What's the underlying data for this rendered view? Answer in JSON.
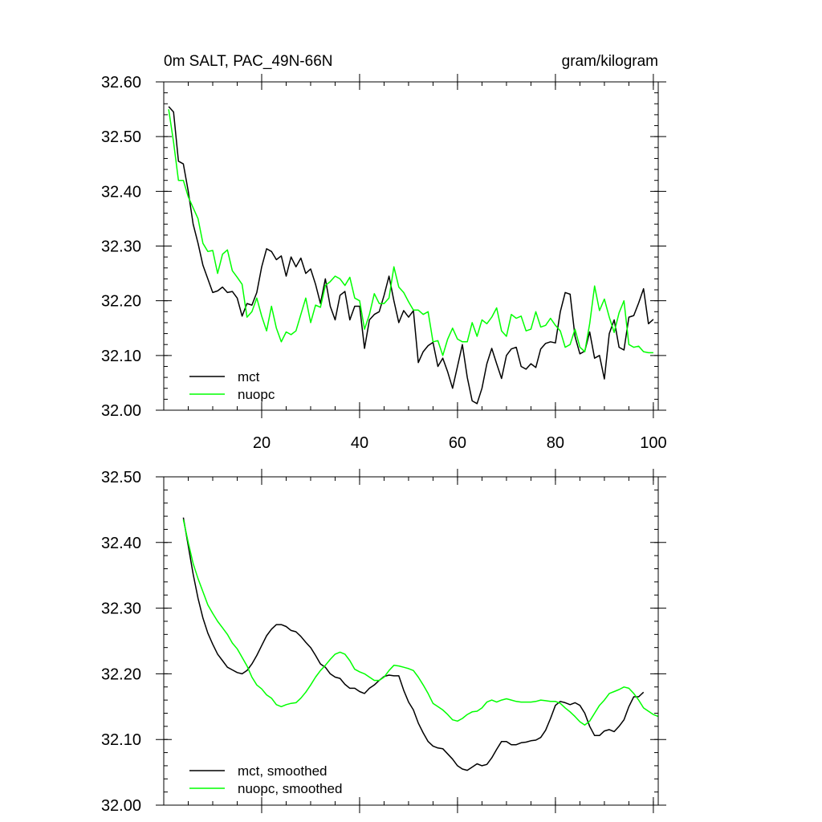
{
  "chart_data": [
    {
      "type": "line",
      "title": "0m SALT, PAC_49N-66N",
      "units": "gram/kilogram",
      "xlabel": "",
      "ylabel": "",
      "xlim": [
        0,
        101
      ],
      "ylim": [
        32.0,
        32.6
      ],
      "xticks": [
        20,
        40,
        60,
        80,
        100
      ],
      "xtick_labels": [
        "20",
        "40",
        "60",
        "80",
        "100"
      ],
      "yticks": [
        32.0,
        32.1,
        32.2,
        32.3,
        32.4,
        32.5,
        32.6
      ],
      "ytick_labels": [
        "32.00",
        "32.10",
        "32.20",
        "32.30",
        "32.40",
        "32.50",
        "32.60"
      ],
      "legend_position": "bottom-left",
      "series": [
        {
          "name": "mct",
          "color": "#000000",
          "values": [
            32.555,
            32.545,
            32.455,
            32.45,
            32.4,
            32.34,
            32.305,
            32.265,
            32.24,
            32.215,
            32.218,
            32.225,
            32.215,
            32.217,
            32.205,
            32.172,
            32.195,
            32.192,
            32.215,
            32.262,
            32.295,
            32.29,
            32.275,
            32.282,
            32.245,
            32.28,
            32.262,
            32.278,
            32.25,
            32.258,
            32.23,
            32.195,
            32.24,
            32.19,
            32.165,
            32.21,
            32.217,
            32.165,
            32.19,
            32.19,
            32.113,
            32.165,
            32.175,
            32.18,
            32.21,
            32.245,
            32.2,
            32.16,
            32.182,
            32.17,
            32.182,
            32.087,
            32.107,
            32.118,
            32.124,
            32.08,
            32.095,
            32.07,
            32.04,
            32.08,
            32.12,
            32.06,
            32.017,
            32.012,
            32.04,
            32.085,
            32.113,
            32.085,
            32.058,
            32.1,
            32.112,
            32.115,
            32.08,
            32.075,
            32.085,
            32.078,
            32.112,
            32.122,
            32.125,
            32.123,
            32.18,
            32.215,
            32.212,
            32.135,
            32.103,
            32.108,
            32.143,
            32.095,
            32.1,
            32.057,
            32.14,
            32.165,
            32.115,
            32.11,
            32.17,
            32.173,
            32.196,
            32.222,
            32.158,
            32.166
          ]
        },
        {
          "name": "nuopc",
          "color": "#00ff00",
          "values": [
            32.55,
            32.49,
            32.42,
            32.42,
            32.39,
            32.37,
            32.35,
            32.305,
            32.29,
            32.292,
            32.25,
            32.285,
            32.293,
            32.255,
            32.243,
            32.23,
            32.17,
            32.18,
            32.205,
            32.172,
            32.145,
            32.19,
            32.15,
            32.125,
            32.143,
            32.138,
            32.145,
            32.175,
            32.205,
            32.16,
            32.192,
            32.188,
            32.228,
            32.235,
            32.245,
            32.24,
            32.228,
            32.243,
            32.205,
            32.2,
            32.148,
            32.175,
            32.213,
            32.195,
            32.195,
            32.205,
            32.262,
            32.225,
            32.215,
            32.198,
            32.183,
            32.183,
            32.175,
            32.18,
            32.125,
            32.127,
            32.1,
            32.13,
            32.15,
            32.13,
            32.125,
            32.125,
            32.16,
            32.135,
            32.165,
            32.158,
            32.17,
            32.187,
            32.145,
            32.135,
            32.175,
            32.168,
            32.172,
            32.145,
            32.148,
            32.18,
            32.152,
            32.155,
            32.168,
            32.155,
            32.145,
            32.115,
            32.12,
            32.148,
            32.115,
            32.107,
            32.158,
            32.227,
            32.182,
            32.203,
            32.17,
            32.142,
            32.178,
            32.2,
            32.12,
            32.115,
            32.117,
            32.107,
            32.105,
            32.105
          ]
        }
      ]
    },
    {
      "type": "line",
      "title": "",
      "xlabel": "",
      "ylabel": "",
      "xlim": [
        0,
        101
      ],
      "ylim": [
        32.0,
        32.5
      ],
      "xticks": [
        20,
        40,
        60,
        80,
        100
      ],
      "xtick_labels": [],
      "yticks": [
        32.0,
        32.1,
        32.2,
        32.3,
        32.4,
        32.5
      ],
      "ytick_labels": [
        "32.00",
        "32.10",
        "32.20",
        "32.30",
        "32.40",
        "32.50"
      ],
      "legend_position": "bottom-left",
      "series": [
        {
          "name": "mct, smoothed",
          "color": "#000000",
          "x_start": 4,
          "values": [
            32.438,
            32.395,
            32.352,
            32.315,
            32.285,
            32.262,
            32.245,
            32.23,
            32.22,
            32.21,
            32.206,
            32.202,
            32.2,
            32.205,
            32.215,
            32.228,
            32.243,
            32.258,
            32.268,
            32.275,
            32.275,
            32.272,
            32.266,
            32.264,
            32.257,
            32.248,
            32.24,
            32.228,
            32.215,
            32.21,
            32.2,
            32.195,
            32.193,
            32.184,
            32.178,
            32.178,
            32.173,
            32.17,
            32.178,
            32.183,
            32.19,
            32.196,
            32.198,
            32.197,
            32.197,
            32.175,
            32.157,
            32.145,
            32.125,
            32.11,
            32.097,
            32.09,
            32.087,
            32.086,
            32.078,
            32.07,
            32.06,
            32.055,
            32.053,
            32.058,
            32.063,
            32.06,
            32.062,
            32.072,
            32.085,
            32.097,
            32.097,
            32.092,
            32.092,
            32.095,
            32.096,
            32.098,
            32.099,
            32.103,
            32.114,
            32.132,
            32.152,
            32.158,
            32.156,
            32.153,
            32.156,
            32.152,
            32.14,
            32.12,
            32.106,
            32.106,
            32.113,
            32.115,
            32.112,
            32.12,
            32.13,
            32.15,
            32.165,
            32.165,
            32.172
          ]
        },
        {
          "name": "nuopc, smoothed",
          "color": "#00ff00",
          "x_start": 4,
          "values": [
            32.435,
            32.4,
            32.368,
            32.345,
            32.325,
            32.305,
            32.292,
            32.28,
            32.27,
            32.26,
            32.247,
            32.238,
            32.225,
            32.212,
            32.195,
            32.183,
            32.177,
            32.168,
            32.163,
            32.153,
            32.15,
            32.153,
            32.155,
            32.156,
            32.163,
            32.172,
            32.183,
            32.195,
            32.205,
            32.213,
            32.222,
            32.23,
            32.233,
            32.23,
            32.22,
            32.207,
            32.203,
            32.2,
            32.195,
            32.19,
            32.19,
            32.195,
            32.205,
            32.213,
            32.212,
            32.21,
            32.208,
            32.205,
            32.195,
            32.183,
            32.17,
            32.155,
            32.15,
            32.145,
            32.138,
            32.13,
            32.128,
            32.132,
            32.138,
            32.142,
            32.143,
            32.148,
            32.157,
            32.16,
            32.157,
            32.16,
            32.162,
            32.16,
            32.158,
            32.157,
            32.157,
            32.157,
            32.158,
            32.16,
            32.159,
            32.158,
            32.158,
            32.155,
            32.148,
            32.142,
            32.135,
            32.127,
            32.122,
            32.128,
            32.14,
            32.152,
            32.16,
            32.17,
            32.173,
            32.176,
            32.18,
            32.178,
            32.17,
            32.16,
            32.148,
            32.143,
            32.138,
            32.135
          ]
        }
      ]
    }
  ]
}
